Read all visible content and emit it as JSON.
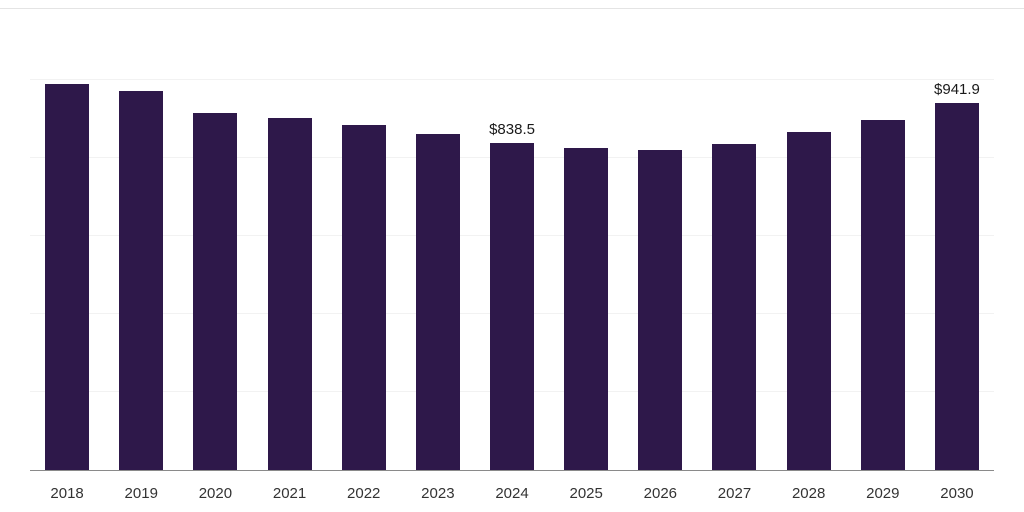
{
  "chart_data": {
    "type": "bar",
    "categories": [
      "2018",
      "2019",
      "2020",
      "2021",
      "2022",
      "2023",
      "2024",
      "2025",
      "2026",
      "2027",
      "2028",
      "2029",
      "2030"
    ],
    "values": [
      990,
      972,
      916,
      903,
      885,
      862,
      838.5,
      826,
      821,
      836,
      867,
      898,
      941.9
    ],
    "annotations": [
      {
        "category": "2024",
        "text": "$838.5"
      },
      {
        "category": "2030",
        "text": "$941.9"
      }
    ],
    "title": "",
    "xlabel": "",
    "ylabel": "",
    "ylim": [
      0,
      1000
    ],
    "grid": true,
    "gridline_values": [
      200,
      400,
      600,
      800,
      1000
    ],
    "bar_color": "#2e184a",
    "axis_line_color": "#8a8a8a",
    "gridline_color": "#f2f2f2",
    "label_color": "#1a1a1a",
    "tick_color": "#333333"
  }
}
